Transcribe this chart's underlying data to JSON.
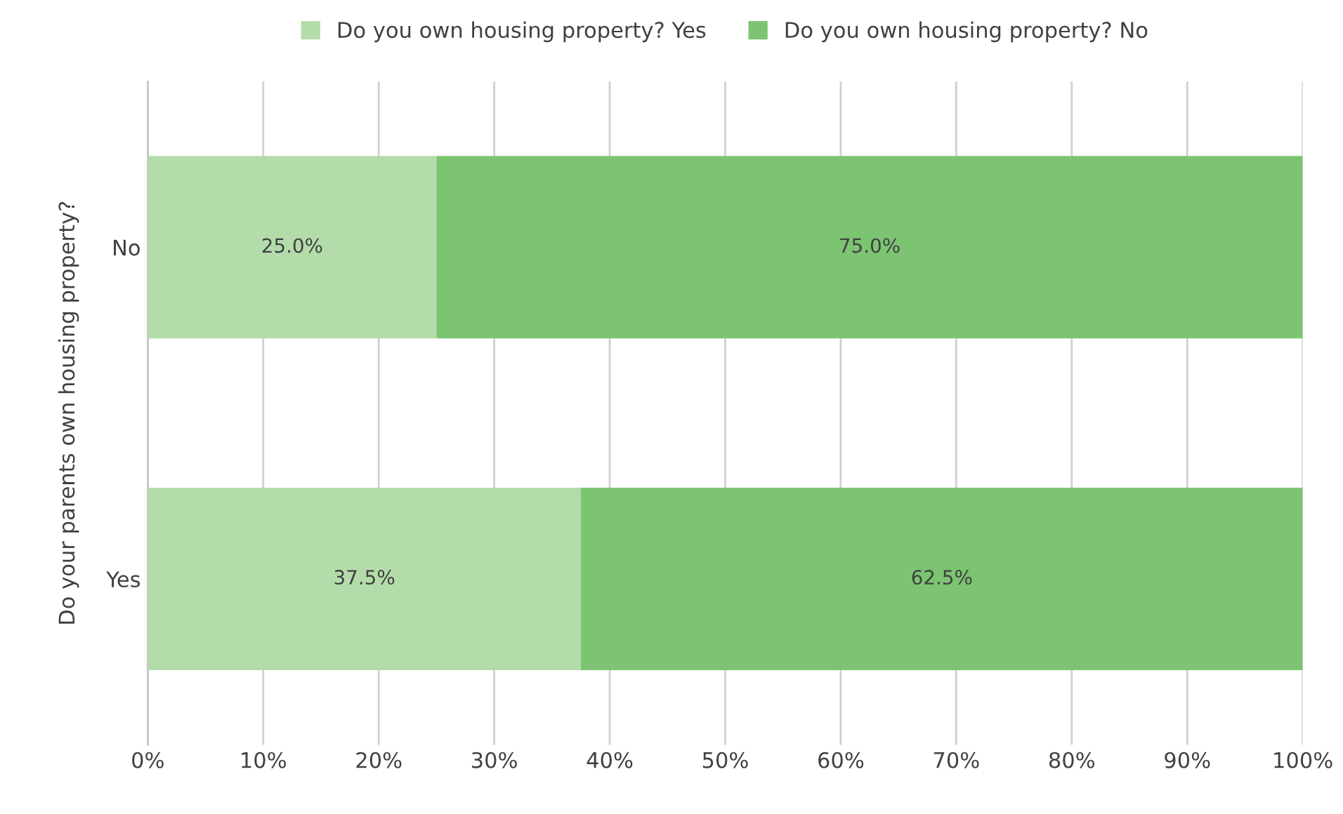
{
  "chart_data": {
    "type": "bar",
    "orientation": "horizontal",
    "stacked": true,
    "ylabel": "Do your parents own housing property?",
    "categories": [
      "No",
      "Yes"
    ],
    "series": [
      {
        "name": "Do you own housing property? Yes",
        "color": "#b4dcab",
        "values": [
          25.0,
          37.5
        ],
        "value_labels": [
          "25.0%",
          "37.5%"
        ]
      },
      {
        "name": "Do you own housing property? No",
        "color": "#7cc472",
        "values": [
          75.0,
          62.5
        ],
        "value_labels": [
          "75.0%",
          "62.5%"
        ]
      }
    ],
    "xlim": [
      0,
      100
    ],
    "xticks": [
      {
        "value": 0,
        "label": "0%"
      },
      {
        "value": 10,
        "label": "10%"
      },
      {
        "value": 20,
        "label": "20%"
      },
      {
        "value": 30,
        "label": "30%"
      },
      {
        "value": 40,
        "label": "40%"
      },
      {
        "value": 50,
        "label": "50%"
      },
      {
        "value": 60,
        "label": "60%"
      },
      {
        "value": 70,
        "label": "70%"
      },
      {
        "value": 80,
        "label": "80%"
      },
      {
        "value": 90,
        "label": "90%"
      },
      {
        "value": 100,
        "label": "100%"
      }
    ],
    "grid": "x",
    "legend": "top"
  }
}
